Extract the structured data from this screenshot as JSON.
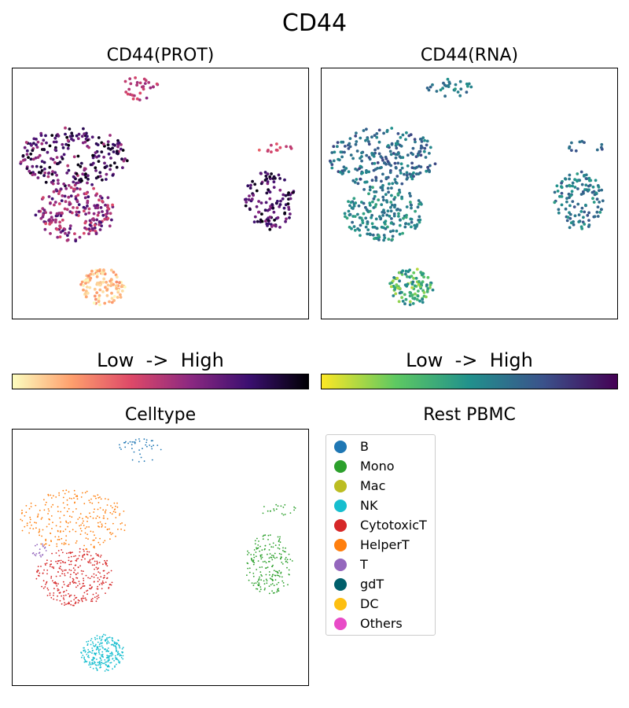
{
  "title": "CD44",
  "colorbar_label": "Low  ->  High",
  "colors": {
    "magma": [
      "#fcfdbf",
      "#fe9f6d",
      "#de4968",
      "#8c2981",
      "#3b0f70",
      "#000004"
    ],
    "viridis": [
      "#fde725",
      "#5ec962",
      "#21918c",
      "#3b528b",
      "#440154"
    ]
  },
  "chart_data": [
    {
      "type": "scatter",
      "title": "CD44(PROT)",
      "colormap": "magma",
      "colorbar": "Low  ->  High",
      "xlabel": "",
      "ylabel": "",
      "axes_ticks": false,
      "clusters": [
        {
          "group": "B",
          "n": 30,
          "x": [
            7.0,
            10.2
          ],
          "y": [
            9.6,
            10.6
          ],
          "level": [
            0.4,
            0.6
          ]
        },
        {
          "group": "HelperT",
          "n": 230,
          "x": [
            0.4,
            7.8
          ],
          "y": [
            5.8,
            8.4
          ],
          "level": [
            0.5,
            1.0
          ]
        },
        {
          "group": "CytotoxicT",
          "n": 190,
          "x": [
            1.5,
            6.9
          ],
          "y": [
            3.4,
            5.9
          ],
          "level": [
            0.4,
            0.8
          ]
        },
        {
          "group": "NK",
          "n": 110,
          "x": [
            4.6,
            7.6
          ],
          "y": [
            0.6,
            2.2
          ],
          "level": [
            0.0,
            0.25
          ]
        },
        {
          "group": "Mono",
          "n": 120,
          "x": [
            15.7,
            19.1
          ],
          "y": [
            3.9,
            6.5
          ],
          "level": [
            0.6,
            1.0
          ]
        },
        {
          "group": "Mono",
          "n": 12,
          "x": [
            16.4,
            19.2
          ],
          "y": [
            7.3,
            7.8
          ],
          "level": [
            0.3,
            0.5
          ]
        }
      ]
    },
    {
      "type": "scatter",
      "title": "CD44(RNA)",
      "colormap": "viridis",
      "colorbar": "Low  ->  High",
      "xlabel": "",
      "ylabel": "",
      "axes_ticks": false,
      "clusters": [
        {
          "group": "B",
          "n": 30,
          "x": [
            7.0,
            10.2
          ],
          "y": [
            9.6,
            10.6
          ],
          "level": [
            0.45,
            0.7
          ]
        },
        {
          "group": "HelperT",
          "n": 230,
          "x": [
            0.4,
            7.8
          ],
          "y": [
            5.8,
            8.4
          ],
          "level": [
            0.5,
            0.8
          ]
        },
        {
          "group": "CytotoxicT",
          "n": 190,
          "x": [
            1.5,
            6.9
          ],
          "y": [
            3.4,
            5.9
          ],
          "level": [
            0.4,
            0.7
          ]
        },
        {
          "group": "NK",
          "n": 110,
          "x": [
            4.6,
            7.6
          ],
          "y": [
            0.6,
            2.2
          ],
          "level": [
            0.1,
            0.6
          ]
        },
        {
          "group": "Mono",
          "n": 120,
          "x": [
            15.7,
            19.1
          ],
          "y": [
            3.9,
            6.5
          ],
          "level": [
            0.45,
            0.75
          ]
        },
        {
          "group": "Mono",
          "n": 12,
          "x": [
            16.4,
            19.2
          ],
          "y": [
            7.3,
            7.8
          ],
          "level": [
            0.6,
            0.8
          ]
        }
      ]
    },
    {
      "type": "scatter",
      "title": "Celltype",
      "xlabel": "",
      "ylabel": "",
      "axes_ticks": false,
      "clusters": [
        {
          "group": "B",
          "n": 40,
          "x": [
            7.0,
            10.2
          ],
          "y": [
            9.6,
            10.6
          ]
        },
        {
          "group": "HelperT",
          "n": 260,
          "x": [
            0.4,
            7.8
          ],
          "y": [
            5.8,
            8.4
          ]
        },
        {
          "group": "T",
          "n": 20,
          "x": [
            1.3,
            2.3
          ],
          "y": [
            5.5,
            6.1
          ]
        },
        {
          "group": "CytotoxicT",
          "n": 320,
          "x": [
            1.5,
            6.9
          ],
          "y": [
            3.4,
            5.9
          ]
        },
        {
          "group": "NK",
          "n": 260,
          "x": [
            4.6,
            7.6
          ],
          "y": [
            0.6,
            2.2
          ]
        },
        {
          "group": "Mono",
          "n": 200,
          "x": [
            15.7,
            19.1
          ],
          "y": [
            3.9,
            6.5
          ]
        },
        {
          "group": "Mono",
          "n": 20,
          "x": [
            16.4,
            19.2
          ],
          "y": [
            7.3,
            7.8
          ]
        }
      ]
    }
  ],
  "legend": {
    "title": "Rest PBMC",
    "placement": "right",
    "items": [
      {
        "label": "B",
        "color": "#1f77b4"
      },
      {
        "label": "Mono",
        "color": "#2ca02c"
      },
      {
        "label": "Mac",
        "color": "#bcbd22"
      },
      {
        "label": "NK",
        "color": "#17becf"
      },
      {
        "label": "CytotoxicT",
        "color": "#d62728"
      },
      {
        "label": "HelperT",
        "color": "#ff7f0e"
      },
      {
        "label": "T",
        "color": "#9467bd"
      },
      {
        "label": "gdT",
        "color": "#005f6b"
      },
      {
        "label": "DC",
        "color": "#fdbf11"
      },
      {
        "label": "Others",
        "color": "#e84bc7"
      }
    ]
  }
}
